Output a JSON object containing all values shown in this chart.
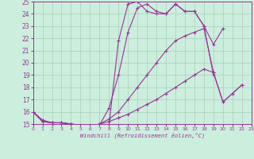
{
  "background_color": "#cceedd",
  "grid_color": "#aaccbb",
  "line_color": "#993399",
  "xlabel": "Windchill (Refroidissement éolien,°C)",
  "xlim": [
    0,
    23
  ],
  "ylim": [
    15,
    25
  ],
  "xticks": [
    0,
    1,
    2,
    3,
    4,
    5,
    6,
    7,
    8,
    9,
    10,
    11,
    12,
    13,
    14,
    15,
    16,
    17,
    18,
    19,
    20,
    21,
    22,
    23
  ],
  "yticks": [
    15,
    16,
    17,
    18,
    19,
    20,
    21,
    22,
    23,
    24,
    25
  ],
  "lines": [
    {
      "x": [
        0,
        1,
        2,
        3,
        4,
        5,
        6,
        7,
        8,
        9,
        10,
        11,
        12,
        13,
        14,
        15,
        16,
        17,
        18,
        19,
        20
      ],
      "y": [
        16.0,
        15.3,
        15.1,
        15.1,
        15.0,
        14.9,
        14.8,
        14.8,
        14.9,
        21.8,
        24.8,
        25.0,
        24.2,
        24.0,
        24.0,
        24.8,
        24.2,
        24.2,
        23.0,
        21.5,
        22.8
      ]
    },
    {
      "x": [
        0,
        1,
        2,
        3,
        4,
        5,
        6,
        7,
        8,
        9,
        10,
        11,
        12,
        13,
        14,
        15,
        16,
        17,
        18,
        19
      ],
      "y": [
        16.0,
        15.3,
        15.1,
        15.1,
        15.0,
        14.9,
        14.8,
        14.9,
        16.3,
        19.0,
        22.5,
        24.5,
        24.8,
        24.2,
        24.0,
        24.8,
        24.2,
        24.2,
        23.0,
        19.0
      ]
    },
    {
      "x": [
        0,
        1,
        2,
        3,
        4,
        5,
        6,
        7,
        8,
        9,
        10,
        11,
        12,
        13,
        14,
        15,
        16,
        17,
        18,
        19,
        20,
        21,
        22
      ],
      "y": [
        16.0,
        15.2,
        15.1,
        15.1,
        15.0,
        14.9,
        14.8,
        15.0,
        15.4,
        16.0,
        17.0,
        18.0,
        19.0,
        20.0,
        21.0,
        21.8,
        22.2,
        22.5,
        22.8,
        19.2,
        16.8,
        17.5,
        18.2
      ]
    },
    {
      "x": [
        0,
        1,
        2,
        3,
        4,
        5,
        6,
        7,
        8,
        9,
        10,
        11,
        12,
        13,
        14,
        15,
        16,
        17,
        18,
        19,
        20,
        21,
        22
      ],
      "y": [
        16.0,
        15.2,
        15.1,
        15.1,
        15.0,
        14.9,
        14.8,
        15.0,
        15.2,
        15.5,
        15.8,
        16.2,
        16.6,
        17.0,
        17.5,
        18.0,
        18.5,
        19.0,
        19.5,
        19.2,
        16.8,
        17.5,
        18.2
      ]
    }
  ]
}
